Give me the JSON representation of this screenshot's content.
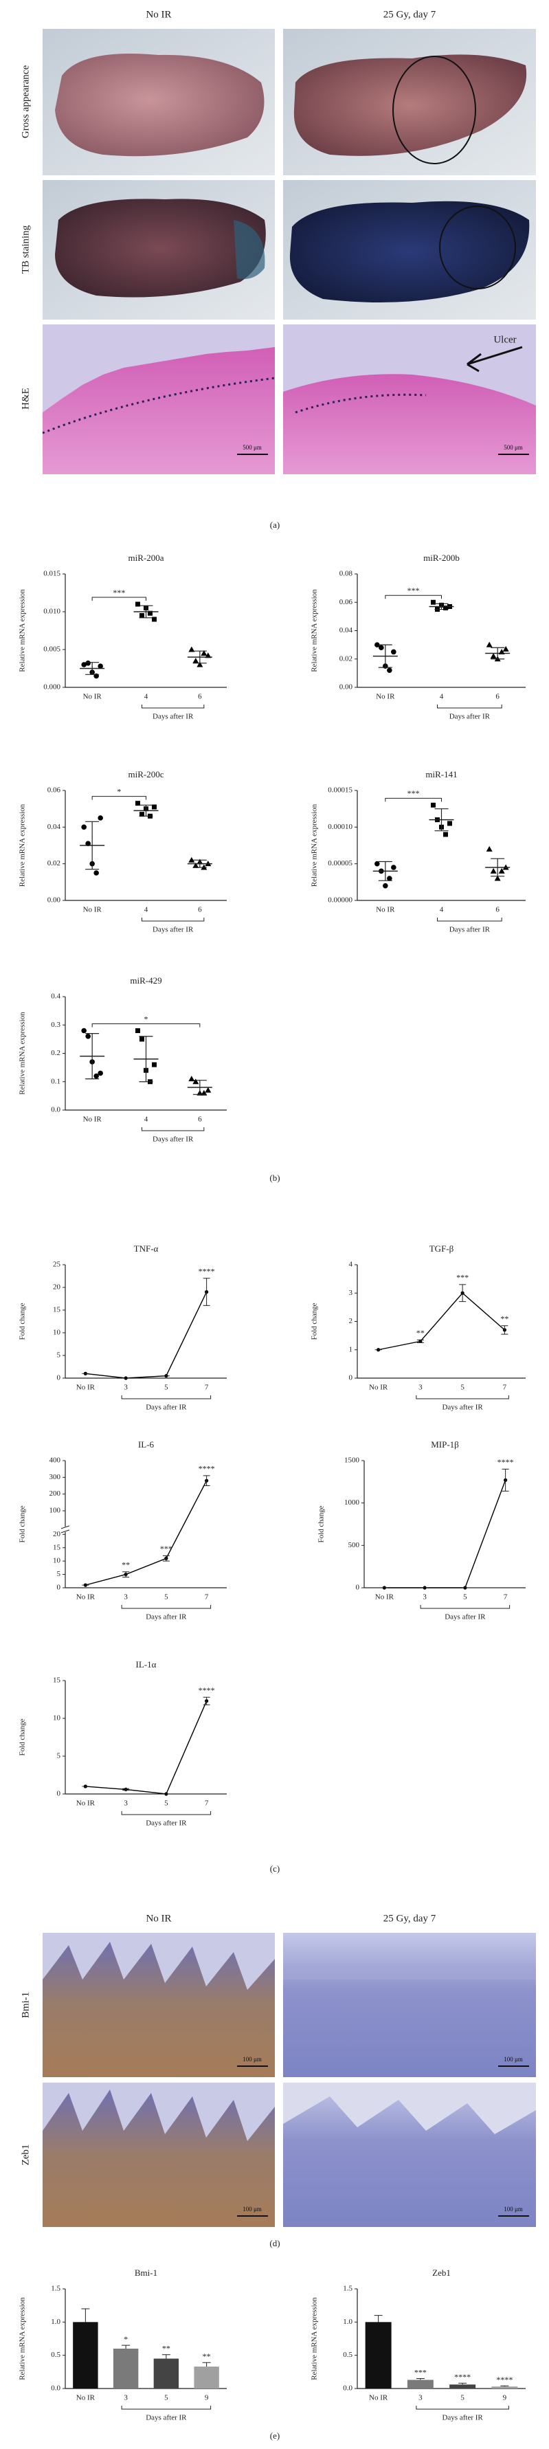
{
  "panel_a": {
    "column_headers": [
      "No IR",
      "25 Gy, day 7"
    ],
    "row_labels": [
      "Gross appearance",
      "TB staining",
      "H&E"
    ],
    "annotation": "Ulcer",
    "scale_bars": [
      "500 μm",
      "500 μm"
    ]
  },
  "panel_d": {
    "column_headers": [
      "No IR",
      "25 Gy, day 7"
    ],
    "row_labels": [
      "Bmi-1",
      "Zeb1"
    ],
    "scale_bars": [
      "100 μm",
      "100 μm",
      "100 μm",
      "100 μm"
    ]
  },
  "panel_labels": [
    "(a)",
    "(b)",
    "(c)",
    "(d)",
    "(e)"
  ],
  "chart_data": [
    {
      "type": "dotplot",
      "title": "miR-200a",
      "ylabel": "Relative mRNA expression",
      "xlabel": "Days after IR",
      "categories": [
        "No IR",
        "4",
        "6"
      ],
      "markers": [
        "circle",
        "square",
        "triangle"
      ],
      "color": "#000000",
      "points": [
        [
          0.003,
          0.0032,
          0.002,
          0.0015,
          0.0028
        ],
        [
          0.011,
          0.0095,
          0.0105,
          0.0098,
          0.009
        ],
        [
          0.005,
          0.0035,
          0.003,
          0.0045,
          0.0042
        ]
      ],
      "means": [
        0.0025,
        0.01,
        0.004
      ],
      "errors": [
        0.0008,
        0.0008,
        0.0008
      ],
      "significance_labels": [
        null,
        "***",
        null
      ],
      "ylim": [
        0,
        0.015
      ],
      "yticks": [
        {
          "value": 0,
          "label": "0.000"
        },
        {
          "value": 0.005,
          "label": "0.005"
        },
        {
          "value": 0.01,
          "label": "0.010"
        },
        {
          "value": 0.015,
          "label": "0.015"
        }
      ]
    },
    {
      "type": "dotplot",
      "title": "miR-200b",
      "ylabel": "Relative mRNA expression",
      "xlabel": "Days after IR",
      "categories": [
        "No IR",
        "4",
        "6"
      ],
      "markers": [
        "circle",
        "square",
        "triangle"
      ],
      "color": "#000000",
      "points": [
        [
          0.03,
          0.028,
          0.015,
          0.012,
          0.025
        ],
        [
          0.06,
          0.055,
          0.058,
          0.056,
          0.057
        ],
        [
          0.03,
          0.022,
          0.02,
          0.025,
          0.027
        ]
      ],
      "means": [
        0.022,
        0.057,
        0.024
      ],
      "errors": [
        0.008,
        0.002,
        0.004
      ],
      "significance_labels": [
        null,
        "***",
        null
      ],
      "ylim": [
        0,
        0.08
      ],
      "yticks": [
        {
          "value": 0,
          "label": "0.00"
        },
        {
          "value": 0.02,
          "label": "0.02"
        },
        {
          "value": 0.04,
          "label": "0.04"
        },
        {
          "value": 0.06,
          "label": "0.06"
        },
        {
          "value": 0.08,
          "label": "0.08"
        }
      ]
    },
    {
      "type": "dotplot",
      "title": "miR-200c",
      "ylabel": "Relative mRNA expression",
      "xlabel": "Days after IR",
      "categories": [
        "No IR",
        "4",
        "6"
      ],
      "markers": [
        "circle",
        "square",
        "triangle"
      ],
      "color": "#000000",
      "points": [
        [
          0.04,
          0.031,
          0.02,
          0.015,
          0.045
        ],
        [
          0.053,
          0.047,
          0.05,
          0.046,
          0.051
        ],
        [
          0.022,
          0.019,
          0.021,
          0.018,
          0.02
        ]
      ],
      "means": [
        0.03,
        0.049,
        0.02
      ],
      "errors": [
        0.013,
        0.003,
        0.002
      ],
      "significance_labels": [
        null,
        "*",
        null
      ],
      "ylim": [
        0,
        0.06
      ],
      "yticks": [
        {
          "value": 0,
          "label": "0.00"
        },
        {
          "value": 0.02,
          "label": "0.02"
        },
        {
          "value": 0.04,
          "label": "0.04"
        },
        {
          "value": 0.06,
          "label": "0.06"
        }
      ]
    },
    {
      "type": "dotplot",
      "title": "miR-141",
      "ylabel": "Relative mRNA expression",
      "xlabel": "Days after IR",
      "categories": [
        "No IR",
        "4",
        "6"
      ],
      "markers": [
        "circle",
        "square",
        "triangle"
      ],
      "color": "#000000",
      "points": [
        [
          5e-05,
          4e-05,
          2e-05,
          3e-05,
          4.5e-05
        ],
        [
          0.00013,
          0.00011,
          0.0001,
          9e-05,
          0.000105
        ],
        [
          7e-05,
          4e-05,
          3e-05,
          4e-05,
          4.5e-05
        ]
      ],
      "means": [
        4e-05,
        0.00011,
        4.5e-05
      ],
      "errors": [
        1.3e-05,
        1.5e-05,
        1.2e-05
      ],
      "significance_labels": [
        null,
        "***",
        null
      ],
      "ylim": [
        0,
        0.00015
      ],
      "yticks": [
        {
          "value": 0,
          "label": "0.00000"
        },
        {
          "value": 5e-05,
          "label": "0.00005"
        },
        {
          "value": 0.0001,
          "label": "0.00010"
        },
        {
          "value": 0.00015,
          "label": "0.00015"
        }
      ]
    },
    {
      "type": "dotplot",
      "title": "miR-429",
      "ylabel": "Relative mRNA expression",
      "xlabel": "Days after IR",
      "categories": [
        "No IR",
        "4",
        "6"
      ],
      "markers": [
        "circle",
        "square",
        "triangle"
      ],
      "color": "#000000",
      "points": [
        [
          0.28,
          0.26,
          0.17,
          0.12,
          0.13
        ],
        [
          0.28,
          0.25,
          0.14,
          0.1,
          0.16
        ],
        [
          0.11,
          0.1,
          0.06,
          0.06,
          0.07
        ]
      ],
      "means": [
        0.19,
        0.18,
        0.08
      ],
      "errors": [
        0.08,
        0.08,
        0.025
      ],
      "significance_labels": [
        null,
        null,
        "*"
      ],
      "ylim": [
        0,
        0.4
      ],
      "yticks": [
        {
          "value": 0,
          "label": "0.0"
        },
        0.1,
        0.2,
        0.3,
        0.4
      ]
    },
    {
      "type": "line",
      "title": "TNF-α",
      "ylabel": "Fold change",
      "xlabel": "Days after IR",
      "color": "#000000",
      "categories": [
        "No IR",
        "3",
        "5",
        "7"
      ],
      "values": [
        1,
        0,
        0.5,
        19
      ],
      "errors": [
        0,
        0,
        0,
        3
      ],
      "significance_labels": [
        null,
        null,
        null,
        "****"
      ],
      "ylim": [
        0,
        25
      ],
      "yticks": [
        0,
        5,
        10,
        15,
        20,
        25
      ]
    },
    {
      "type": "line",
      "title": "TGF-β",
      "ylabel": "Fold change",
      "xlabel": "Days after IR",
      "color": "#000000",
      "categories": [
        "No IR",
        "3",
        "5",
        "7"
      ],
      "values": [
        1,
        1.3,
        3,
        1.7
      ],
      "errors": [
        0,
        0.05,
        0.3,
        0.15
      ],
      "significance_labels": [
        null,
        "**",
        "***",
        "**"
      ],
      "ylim": [
        0,
        4
      ],
      "yticks": [
        0,
        1,
        2,
        3,
        4
      ]
    },
    {
      "type": "line",
      "title": "IL-6",
      "ylabel": "Fold change",
      "xlabel": "Days after IR",
      "color": "#000000",
      "categories": [
        "No IR",
        "3",
        "5",
        "7"
      ],
      "values": [
        1,
        5,
        11,
        280
      ],
      "errors": [
        0,
        1,
        1,
        30
      ],
      "significance_labels": [
        null,
        "**",
        "***",
        "****"
      ],
      "ylim": [
        0,
        400
      ],
      "ybreak": 20,
      "yticks": [
        0,
        5,
        10,
        15,
        20,
        100,
        200,
        300,
        400
      ]
    },
    {
      "type": "line",
      "title": "MIP-1β",
      "ylabel": "Fold change",
      "xlabel": "Days after IR",
      "color": "#000000",
      "categories": [
        "No IR",
        "3",
        "5",
        "7"
      ],
      "values": [
        0,
        0,
        0,
        1270
      ],
      "errors": [
        0,
        0,
        0,
        130
      ],
      "significance_labels": [
        null,
        null,
        null,
        "****"
      ],
      "ylim": [
        0,
        1500
      ],
      "yticks": [
        0,
        500,
        1000,
        1500
      ]
    },
    {
      "type": "line",
      "title": "IL-1α",
      "ylabel": "Fold change",
      "xlabel": "Days after IR",
      "color": "#000000",
      "categories": [
        "No IR",
        "3",
        "5",
        "7"
      ],
      "values": [
        1,
        0.6,
        0,
        12.3
      ],
      "errors": [
        0,
        0.1,
        0,
        0.5
      ],
      "significance_labels": [
        null,
        null,
        null,
        "****"
      ],
      "ylim": [
        0,
        15
      ],
      "yticks": [
        0,
        5,
        10,
        15
      ]
    },
    {
      "type": "bar",
      "title": "Bmi-1",
      "ylabel": "Relative mRNA expression",
      "xlabel": "Days after IR",
      "categories": [
        "No IR",
        "3",
        "5",
        "9"
      ],
      "values": [
        1.0,
        0.6,
        0.45,
        0.33
      ],
      "errors": [
        0.2,
        0.05,
        0.06,
        0.06
      ],
      "colors": [
        "#111111",
        "#7a7a7a",
        "#444444",
        "#a0a0a0"
      ],
      "significance_labels": [
        null,
        "*",
        "**",
        "**"
      ],
      "ylim": [
        0,
        1.5
      ],
      "yticks": [
        {
          "value": 0,
          "label": "0.0"
        },
        0.5,
        {
          "value": 1,
          "label": "1.0"
        },
        1.5
      ]
    },
    {
      "type": "bar",
      "title": "Zeb1",
      "ylabel": "Relative mRNA expression",
      "xlabel": "Days after IR",
      "categories": [
        "No IR",
        "3",
        "5",
        "9"
      ],
      "values": [
        1.0,
        0.13,
        0.06,
        0.03
      ],
      "errors": [
        0.1,
        0.02,
        0.02,
        0.01
      ],
      "colors": [
        "#111111",
        "#7a7a7a",
        "#444444",
        "#a0a0a0"
      ],
      "significance_labels": [
        null,
        "***",
        "****",
        "****"
      ],
      "ylim": [
        0,
        1.5
      ],
      "yticks": [
        {
          "value": 0,
          "label": "0.0"
        },
        0.5,
        {
          "value": 1,
          "label": "1.0"
        },
        1.5
      ]
    }
  ]
}
